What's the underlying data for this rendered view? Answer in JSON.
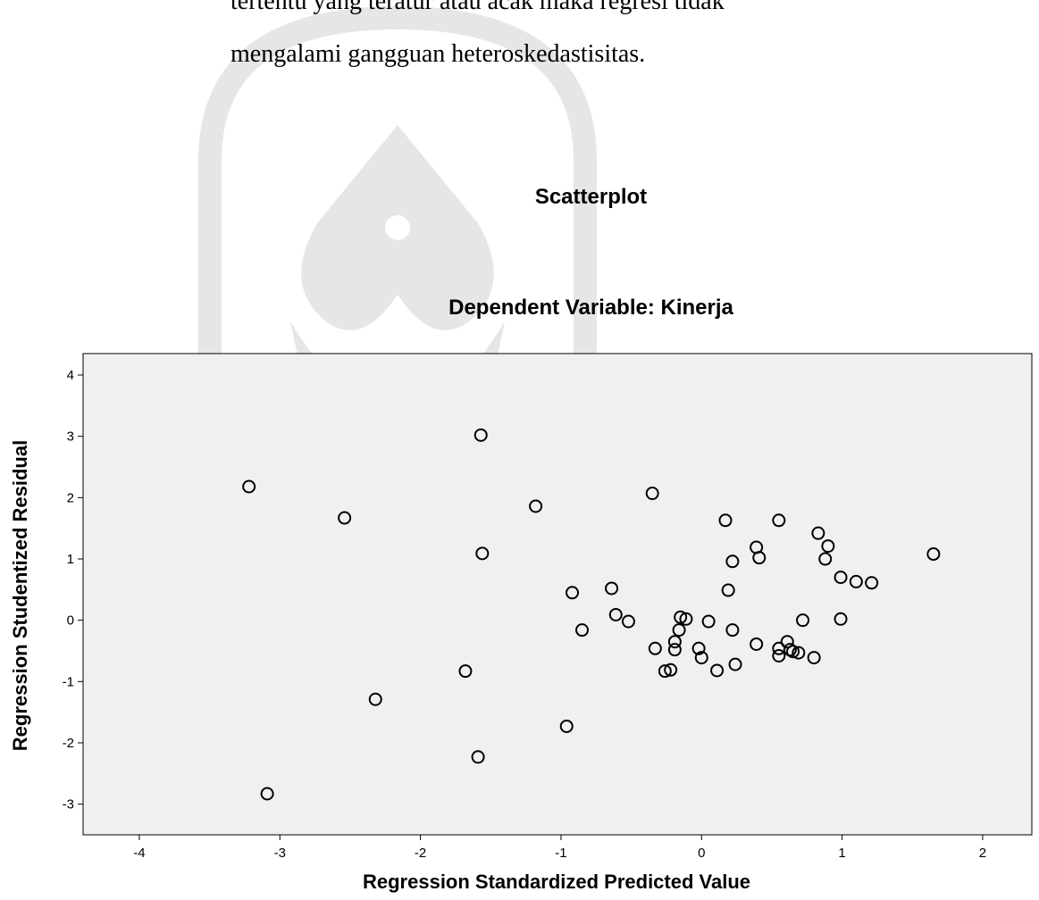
{
  "paragraph": {
    "line1": "tertentu yang teratur atau acak maka regresi tidak",
    "line2": "mengalami gangguan heteroskedastisitas."
  },
  "chart_data": {
    "type": "scatter",
    "title": "Scatterplot",
    "subtitle": "Dependent Variable: Kinerja",
    "xlabel": "Regression Standardized Predicted Value",
    "ylabel": "Regression Studentized Residual",
    "xlim": [
      -4.4,
      2.35
    ],
    "ylim": [
      -3.5,
      4.35
    ],
    "xticks": [
      -4,
      -3,
      -2,
      -1,
      0,
      1,
      2
    ],
    "yticks": [
      -3,
      -2,
      -1,
      0,
      1,
      2,
      3,
      4
    ],
    "grid": false,
    "background_color": "#f0f0f0",
    "marker_color": "#000000",
    "points": [
      {
        "x": -3.22,
        "y": 2.18
      },
      {
        "x": -3.09,
        "y": -2.83
      },
      {
        "x": -2.54,
        "y": 1.67
      },
      {
        "x": -2.32,
        "y": -1.29
      },
      {
        "x": -1.57,
        "y": 3.02
      },
      {
        "x": -1.56,
        "y": 1.09
      },
      {
        "x": -1.59,
        "y": -2.23
      },
      {
        "x": -1.68,
        "y": -0.83
      },
      {
        "x": -1.18,
        "y": 1.86
      },
      {
        "x": -0.96,
        "y": -1.73
      },
      {
        "x": -0.92,
        "y": 0.45
      },
      {
        "x": -0.85,
        "y": -0.16
      },
      {
        "x": -0.64,
        "y": 0.52
      },
      {
        "x": -0.61,
        "y": 0.09
      },
      {
        "x": -0.52,
        "y": -0.02
      },
      {
        "x": -0.35,
        "y": 2.07
      },
      {
        "x": -0.33,
        "y": -0.46
      },
      {
        "x": -0.26,
        "y": -0.83
      },
      {
        "x": -0.22,
        "y": -0.81
      },
      {
        "x": -0.19,
        "y": -0.35
      },
      {
        "x": -0.19,
        "y": -0.48
      },
      {
        "x": -0.16,
        "y": -0.16
      },
      {
        "x": -0.15,
        "y": 0.05
      },
      {
        "x": -0.11,
        "y": 0.02
      },
      {
        "x": -0.02,
        "y": -0.46
      },
      {
        "x": 0.0,
        "y": -0.61
      },
      {
        "x": 0.05,
        "y": -0.02
      },
      {
        "x": 0.11,
        "y": -0.82
      },
      {
        "x": 0.17,
        "y": 1.63
      },
      {
        "x": 0.19,
        "y": 0.49
      },
      {
        "x": 0.22,
        "y": 0.96
      },
      {
        "x": 0.22,
        "y": -0.16
      },
      {
        "x": 0.24,
        "y": -0.72
      },
      {
        "x": 0.39,
        "y": 1.19
      },
      {
        "x": 0.39,
        "y": -0.39
      },
      {
        "x": 0.41,
        "y": 1.02
      },
      {
        "x": 0.55,
        "y": 1.63
      },
      {
        "x": 0.55,
        "y": -0.46
      },
      {
        "x": 0.55,
        "y": -0.58
      },
      {
        "x": 0.61,
        "y": -0.35
      },
      {
        "x": 0.63,
        "y": -0.48
      },
      {
        "x": 0.65,
        "y": -0.51
      },
      {
        "x": 0.69,
        "y": -0.53
      },
      {
        "x": 0.72,
        "y": 0.0
      },
      {
        "x": 0.8,
        "y": -0.61
      },
      {
        "x": 0.83,
        "y": 1.42
      },
      {
        "x": 0.88,
        "y": 1.0
      },
      {
        "x": 0.9,
        "y": 1.21
      },
      {
        "x": 0.99,
        "y": 0.7
      },
      {
        "x": 0.99,
        "y": 0.02
      },
      {
        "x": 1.1,
        "y": 0.63
      },
      {
        "x": 1.21,
        "y": 0.61
      },
      {
        "x": 1.65,
        "y": 1.08
      }
    ]
  }
}
